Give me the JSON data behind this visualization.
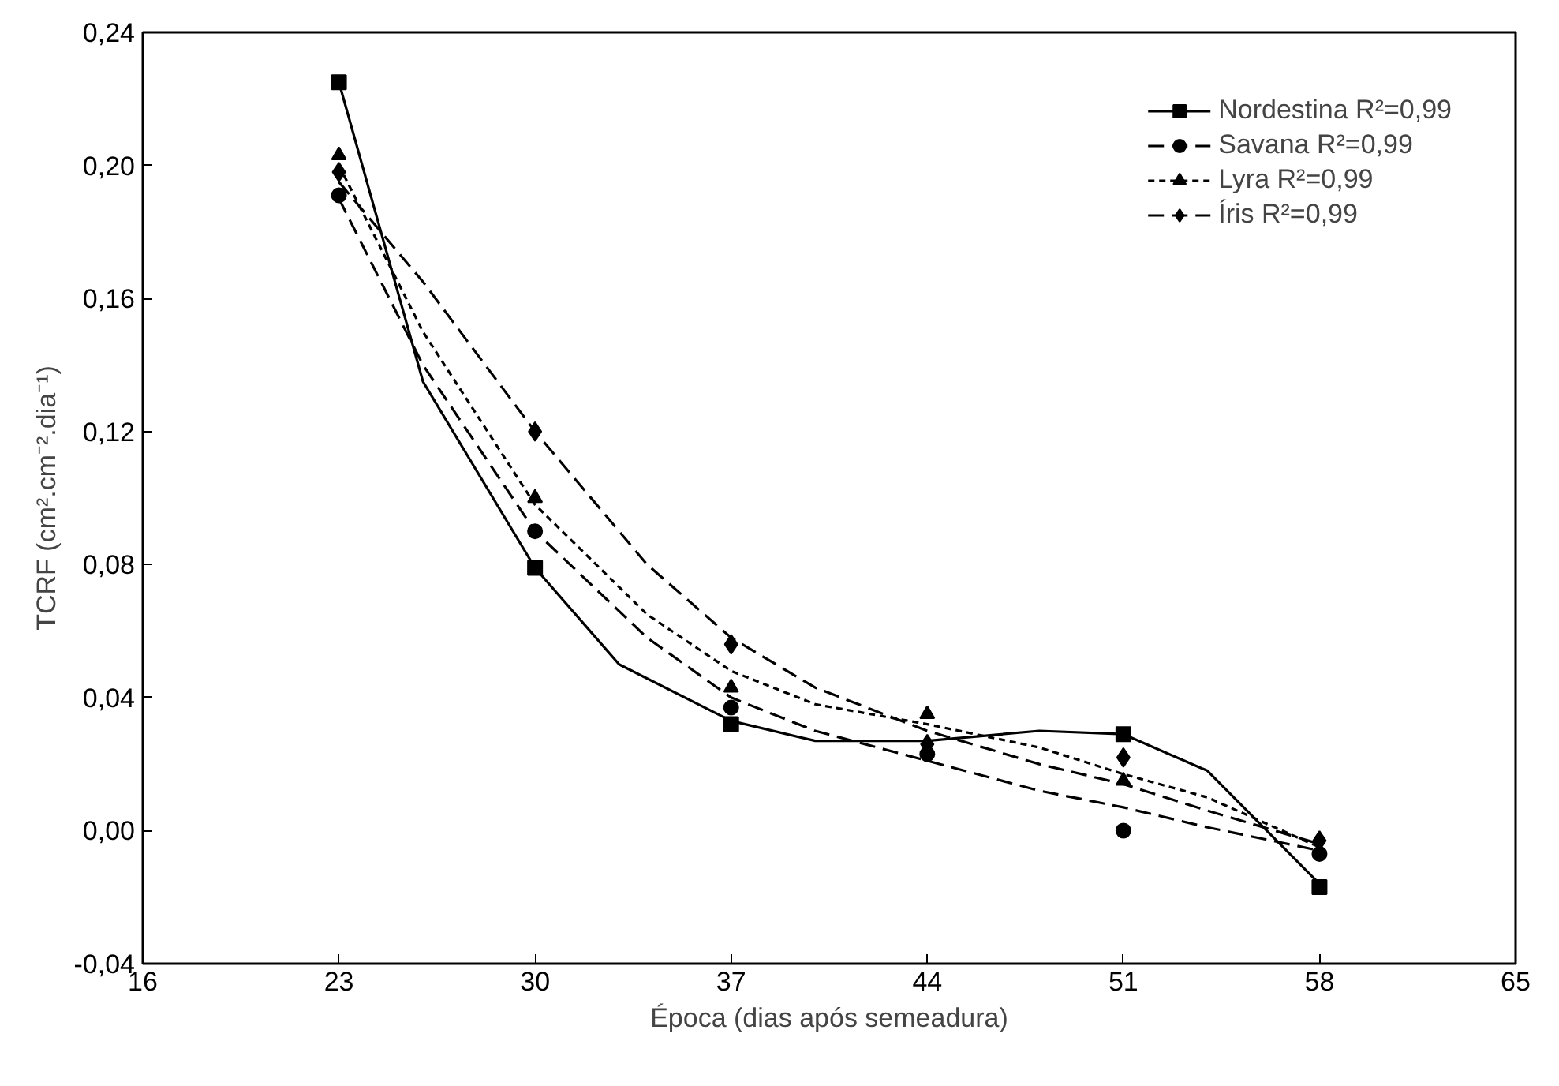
{
  "chart_data": {
    "type": "scatter",
    "xlabel": "Época (dias após semeadura)",
    "ylabel": "TCRF (cm².cm⁻².dia⁻¹)",
    "x": [
      23,
      30,
      37,
      44,
      51,
      58
    ],
    "xlim": [
      16,
      65
    ],
    "xticks": [
      16,
      23,
      30,
      37,
      44,
      51,
      58,
      65
    ],
    "ylim": [
      -0.04,
      0.24
    ],
    "yticks": [
      {
        "value": -0.04,
        "label": "-0,04"
      },
      {
        "value": 0,
        "label": "0,00"
      },
      {
        "value": 0.04,
        "label": "0,04"
      },
      {
        "value": 0.08,
        "label": "0,08"
      },
      {
        "value": 0.12,
        "label": "0,12"
      },
      {
        "value": 0.16,
        "label": "0,16"
      },
      {
        "value": 0.2,
        "label": "0,20"
      },
      {
        "value": 0.24,
        "label": "0,24"
      }
    ],
    "grid": false,
    "legend": "top right",
    "series": [
      {
        "name": "Nordestina R²=0,99",
        "marker": "square",
        "color": "#000000",
        "values": [
          0.225,
          0.079,
          0.032,
          null,
          0.029,
          -0.017
        ]
      },
      {
        "type": "line",
        "line_style": "solid",
        "color": "#000000",
        "x": [
          23,
          26,
          30,
          33,
          37,
          40,
          44,
          48,
          51,
          54,
          58
        ],
        "values": [
          0.225,
          0.135,
          0.079,
          0.05,
          0.033,
          0.027,
          0.027,
          0.03,
          0.029,
          0.018,
          -0.016
        ]
      },
      {
        "name": "Savana R²=0,99",
        "marker": "circle",
        "color": "#000000",
        "values": [
          0.191,
          0.09,
          0.037,
          0.023,
          0.0,
          -0.007
        ]
      },
      {
        "type": "line",
        "line_style": "dashed",
        "color": "#000000",
        "x": [
          23,
          26,
          30,
          34,
          37,
          40,
          44,
          48,
          51,
          54,
          58
        ],
        "values": [
          0.19,
          0.14,
          0.09,
          0.058,
          0.04,
          0.03,
          0.021,
          0.012,
          0.007,
          0.001,
          -0.006
        ]
      },
      {
        "name": "Lyra R²=0,99",
        "marker": "triangle",
        "color": "#000000",
        "values": [
          0.203,
          0.1,
          0.043,
          0.035,
          0.015,
          null
        ]
      },
      {
        "type": "line",
        "line_style": "dotted",
        "color": "#000000",
        "x": [
          23,
          26,
          30,
          34,
          37,
          40,
          44,
          48,
          51,
          54,
          58
        ],
        "values": [
          0.2,
          0.15,
          0.098,
          0.065,
          0.048,
          0.038,
          0.032,
          0.025,
          0.017,
          0.01,
          -0.005
        ]
      },
      {
        "name": "Íris R²=0,99",
        "marker": "diamond",
        "color": "#000000",
        "values": [
          0.198,
          0.12,
          0.056,
          0.026,
          0.022,
          -0.003
        ]
      },
      {
        "type": "line",
        "line_style": "dashed",
        "color": "#000000",
        "x": [
          23,
          26,
          30,
          34,
          37,
          40,
          44,
          48,
          51,
          54,
          58
        ],
        "values": [
          0.195,
          0.165,
          0.12,
          0.08,
          0.058,
          0.043,
          0.03,
          0.02,
          0.014,
          0.006,
          -0.004
        ]
      }
    ]
  }
}
